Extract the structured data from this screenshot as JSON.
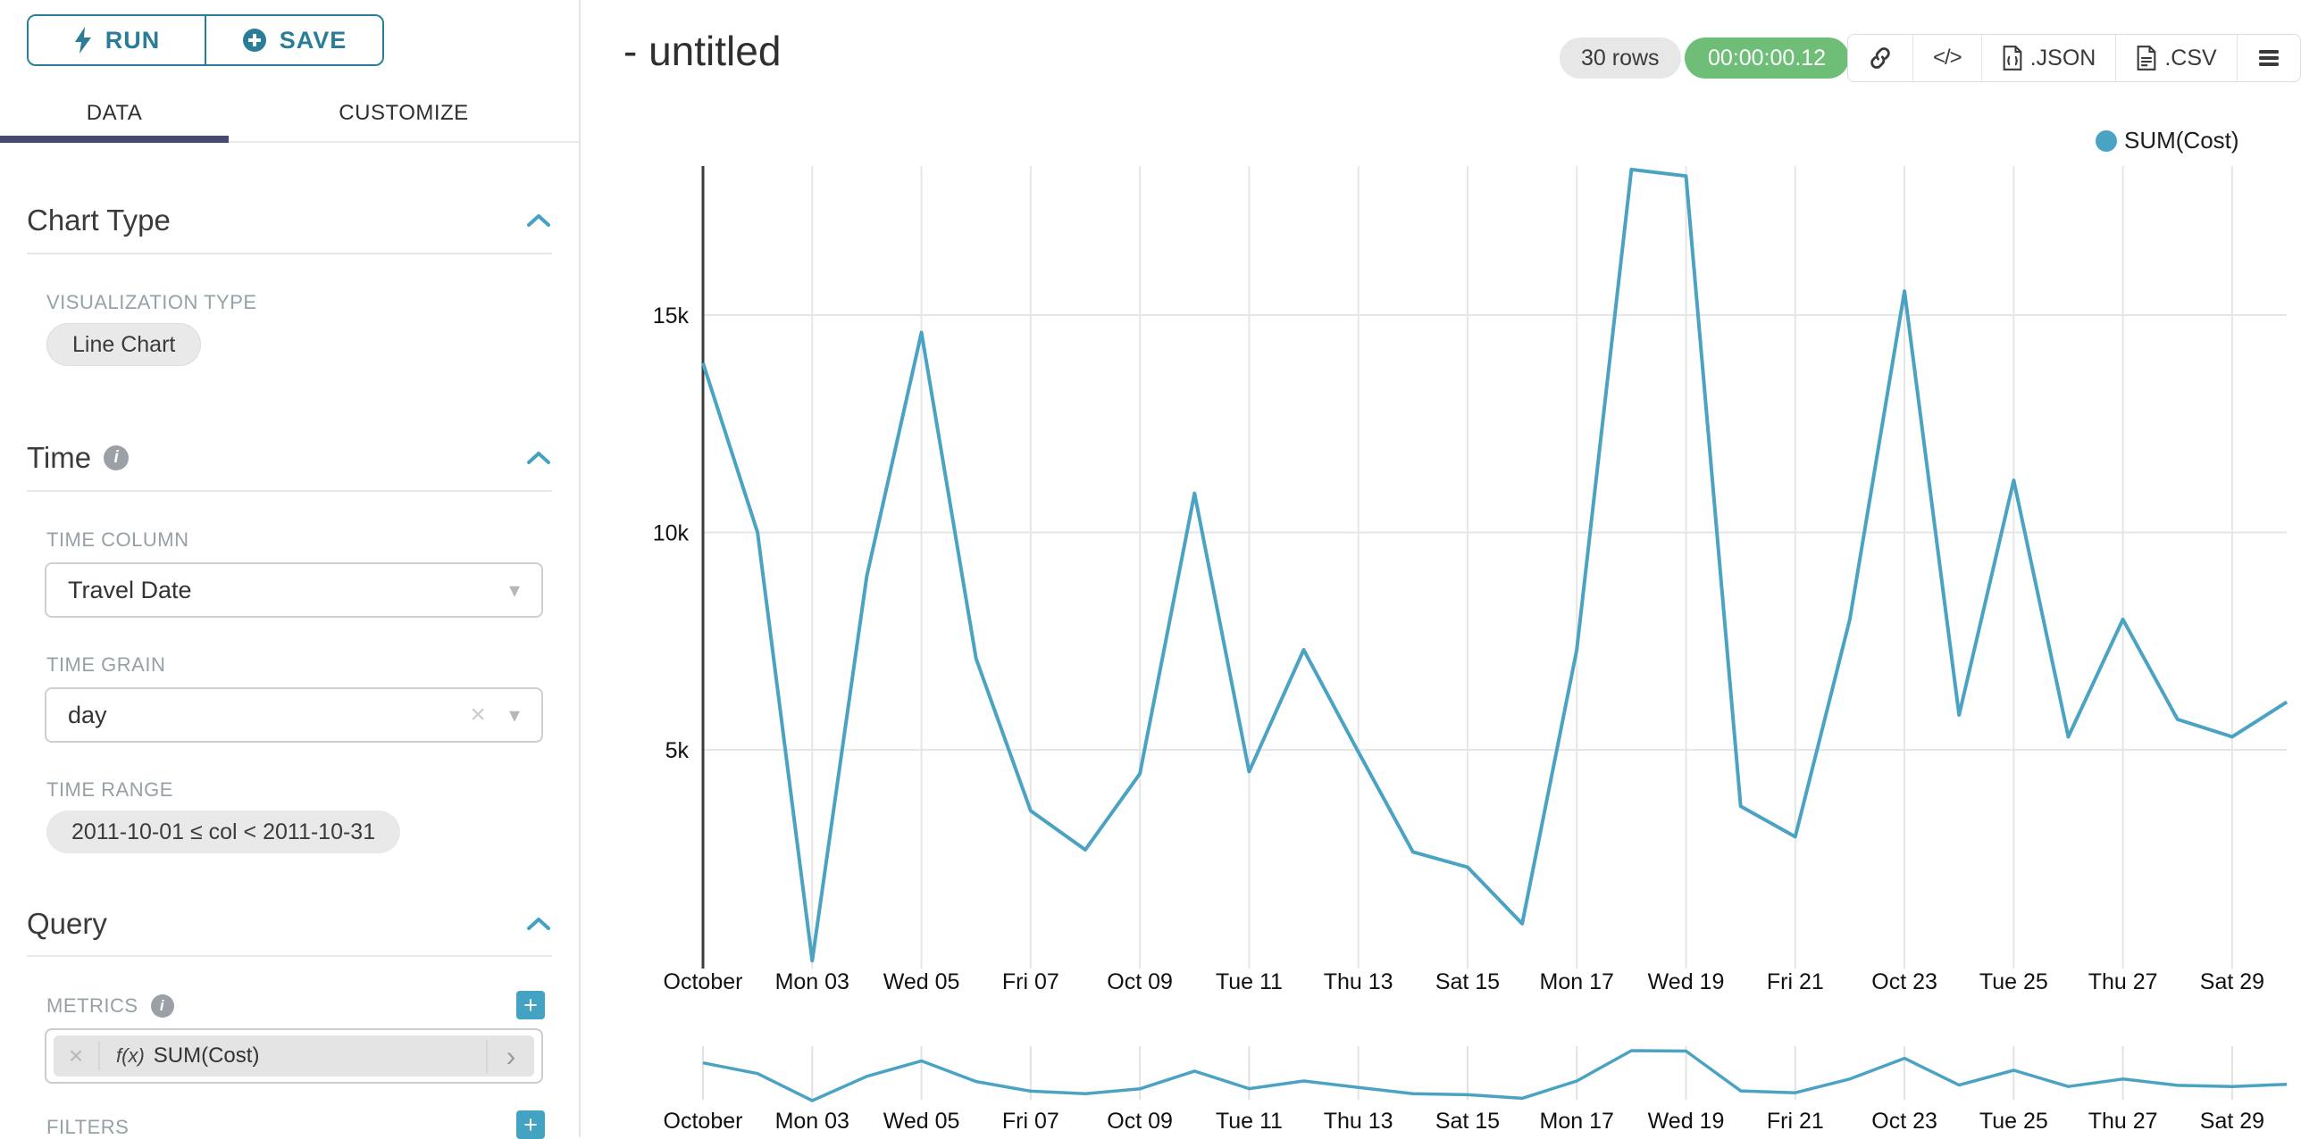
{
  "sidebar": {
    "run_label": "RUN",
    "save_label": "SAVE",
    "tabs": {
      "data": "DATA",
      "customize": "CUSTOMIZE"
    },
    "chart_type": {
      "title": "Chart Type",
      "viz_type_label": "VISUALIZATION TYPE",
      "viz_type_value": "Line Chart"
    },
    "time": {
      "title": "Time",
      "column_label": "TIME COLUMN",
      "column_value": "Travel Date",
      "grain_label": "TIME GRAIN",
      "grain_value": "day",
      "range_label": "TIME RANGE",
      "range_value": "2011-10-01 ≤ col < 2011-10-31"
    },
    "query": {
      "title": "Query",
      "metrics_label": "METRICS",
      "metric_fx": "f(x)",
      "metric_value": "SUM(Cost)",
      "filters_label": "FILTERS",
      "add_label": "+"
    }
  },
  "header": {
    "title": "- untitled",
    "row_count": "30 rows",
    "timer": "00:00:00.12",
    "json_label": ".JSON",
    "csv_label": ".CSV"
  },
  "legend": {
    "label": "SUM(Cost)"
  },
  "icons": {
    "clear_x": "×",
    "caret_down": "▾",
    "chevron_right": "›",
    "code": "</>",
    "info": "i"
  },
  "colors": {
    "line": "#4ba3c3",
    "grid": "#e6e6e6",
    "axis": "#3c3c3c",
    "teal_button": "#2a7d98",
    "accent": "#44a3c3",
    "timer_green": "#6ebe78",
    "tab_indicator": "#464a6e"
  },
  "chart_data": {
    "type": "line",
    "title": "- untitled",
    "xlabel": "",
    "ylabel": "",
    "grid": true,
    "legend_position": "top-right",
    "ylim": [
      150,
      18350
    ],
    "x": [
      "2011-10-01",
      "2011-10-02",
      "2011-10-03",
      "2011-10-04",
      "2011-10-05",
      "2011-10-06",
      "2011-10-07",
      "2011-10-08",
      "2011-10-09",
      "2011-10-10",
      "2011-10-11",
      "2011-10-12",
      "2011-10-13",
      "2011-10-14",
      "2011-10-15",
      "2011-10-16",
      "2011-10-17",
      "2011-10-18",
      "2011-10-19",
      "2011-10-20",
      "2011-10-21",
      "2011-10-22",
      "2011-10-23",
      "2011-10-24",
      "2011-10-25",
      "2011-10-26",
      "2011-10-27",
      "2011-10-28",
      "2011-10-29",
      "2011-10-30"
    ],
    "series": [
      {
        "name": "SUM(Cost)",
        "values": [
          13900,
          10000,
          150,
          9000,
          14600,
          7100,
          3600,
          2700,
          4450,
          10900,
          4500,
          7300,
          4950,
          2650,
          2300,
          1000,
          7300,
          18350,
          18200,
          3700,
          3000,
          8000,
          15550,
          5800,
          11200,
          5300,
          8000,
          5700,
          5300,
          6100
        ]
      }
    ],
    "x_tick_positions": [
      0,
      2,
      4,
      6,
      8,
      10,
      12,
      14,
      16,
      18,
      20,
      22,
      24,
      26,
      28
    ],
    "x_tick_labels": [
      "October",
      "Mon 03",
      "Wed 05",
      "Fri 07",
      "Oct 09",
      "Tue 11",
      "Thu 13",
      "Sat 15",
      "Mon 17",
      "Wed 19",
      "Fri 21",
      "Oct 23",
      "Tue 25",
      "Thu 27",
      "Sat 29"
    ],
    "y_ticks": [
      {
        "value": 5000,
        "label": "5k"
      },
      {
        "value": 10000,
        "label": "10k"
      },
      {
        "value": 15000,
        "label": "15k"
      }
    ]
  }
}
